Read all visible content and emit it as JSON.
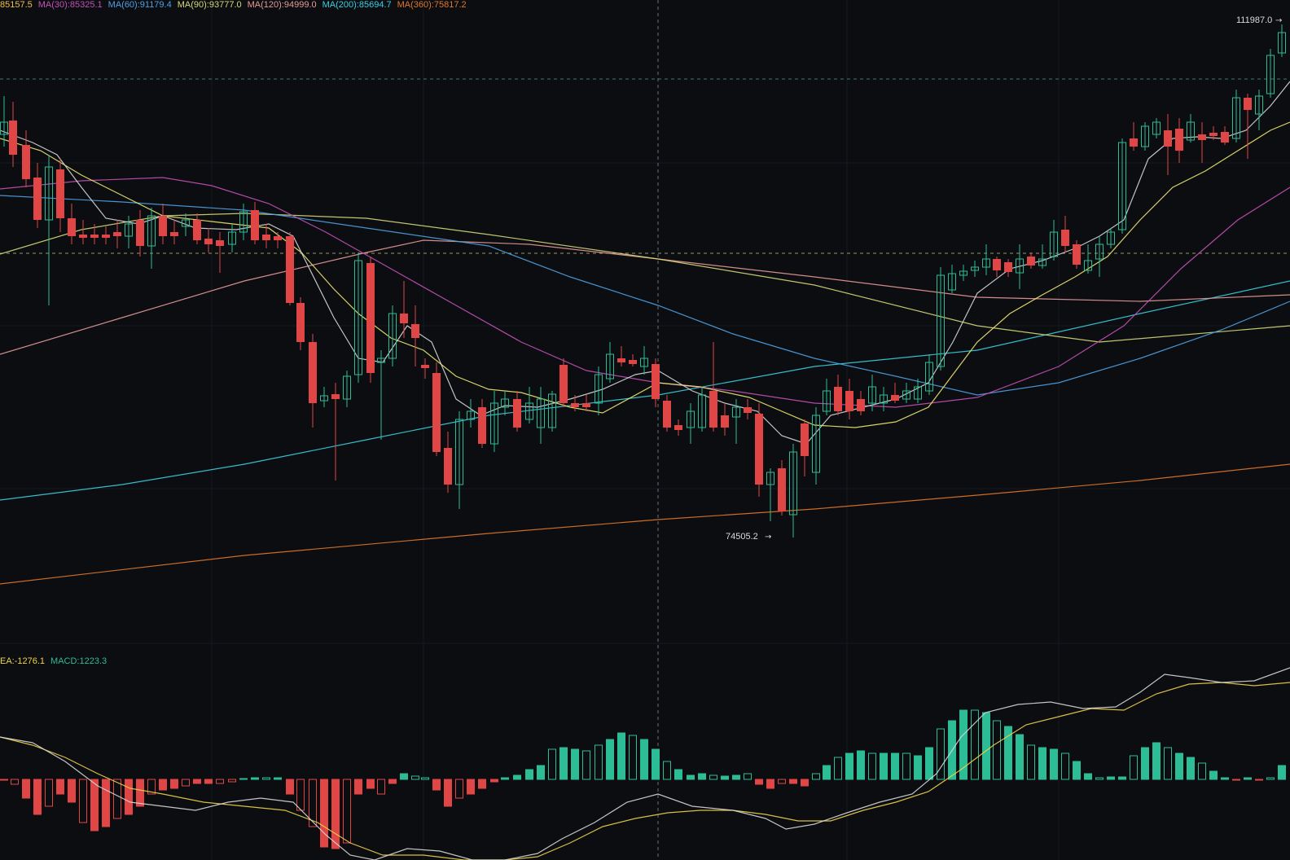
{
  "colors": {
    "background": "#0b0d10",
    "grid": "#1a1e24",
    "up": "#2dbd96",
    "down": "#e04646",
    "crosshair": "#6b7078"
  },
  "top_legend": [
    {
      "text": "85157.5",
      "color": "#f0c04a"
    },
    {
      "text": "MA(30):85325.1",
      "color": "#c451b8"
    },
    {
      "text": "MA(60):91179.4",
      "color": "#4ea1e6"
    },
    {
      "text": "MA(90):93777.0",
      "color": "#d6d97a"
    },
    {
      "text": "MA(120):94999.0",
      "color": "#e89a9a"
    },
    {
      "text": "MA(200):85694.7",
      "color": "#3ad0e0"
    },
    {
      "text": "MA(360):75817.2",
      "color": "#e0782a"
    }
  ],
  "macd_legend": [
    {
      "text": "EA:-1276.1",
      "color": "#f0d24a"
    },
    {
      "text": "MACD:1223.3",
      "color": "#2dbd96"
    }
  ],
  "price_labels": {
    "high": "111987.0",
    "low": "74505.2"
  },
  "chart_data": {
    "type": "candlestick",
    "series": [
      {
        "name": "MA(30)",
        "color": "#c451b8"
      },
      {
        "name": "MA(60)",
        "color": "#4ea1e6"
      },
      {
        "name": "MA(90)",
        "color": "#d6d97a"
      },
      {
        "name": "MA(120)",
        "color": "#e89a9a"
      },
      {
        "name": "MA(200)",
        "color": "#3ad0e0"
      },
      {
        "name": "MA(360)",
        "color": "#e0782a"
      }
    ],
    "annotations": [
      {
        "label": "111987.0",
        "kind": "highest"
      },
      {
        "label": "74505.2",
        "kind": "lowest"
      }
    ]
  }
}
